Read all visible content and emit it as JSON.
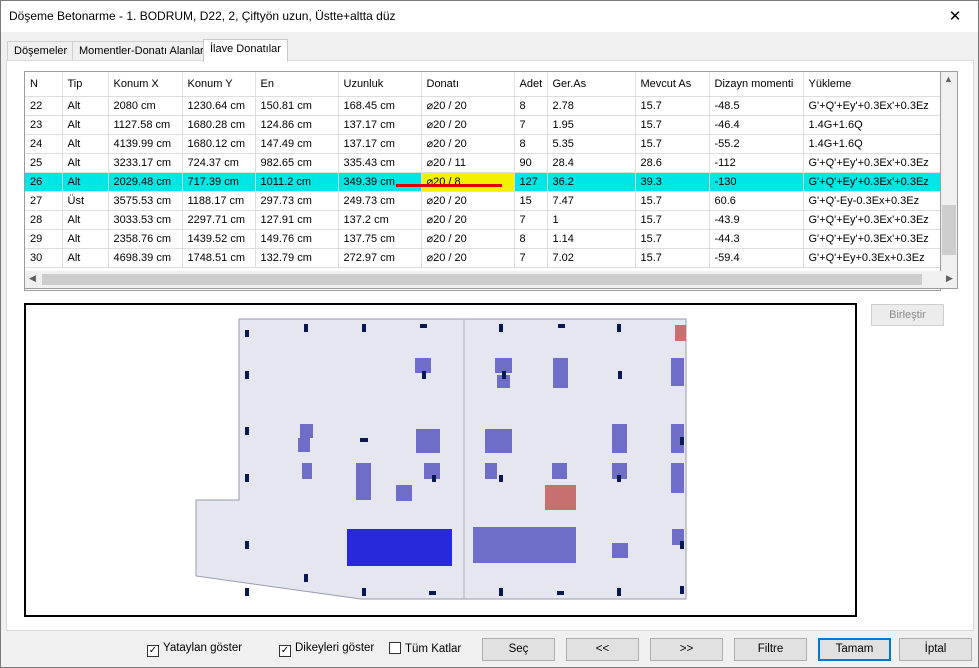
{
  "window": {
    "title": "Döşeme Betonarme - 1. BODRUM, D22, 2, Çiftyön uzun, Üstte+altta düz",
    "close": "✕"
  },
  "tabs": [
    "Döşemeler",
    "Momentler-Donatı Alanları",
    "İlave Donatılar"
  ],
  "table": {
    "columns": [
      "N",
      "Tip",
      "Konum X",
      "Konum Y",
      "En",
      "Uzunluk",
      "Donatı",
      "Adet",
      "Ger.As",
      "Mevcut As",
      "Dizayn momenti",
      "Yükleme"
    ],
    "rows": [
      [
        "22",
        "Alt",
        "2080 cm",
        "1230.64 cm",
        "150.81 cm",
        "168.45 cm",
        "⌀20 / 20",
        "8",
        "2.78",
        "15.7",
        "-48.5",
        "G'+Q'+Ey'+0.3Ex'+0.3Ez"
      ],
      [
        "23",
        "Alt",
        "1127.58 cm",
        "1680.28 cm",
        "124.86 cm",
        "137.17 cm",
        "⌀20 / 20",
        "7",
        "1.95",
        "15.7",
        "-46.4",
        "1.4G+1.6Q"
      ],
      [
        "24",
        "Alt",
        "4139.99 cm",
        "1680.12 cm",
        "147.49 cm",
        "137.17 cm",
        "⌀20 / 20",
        "8",
        "5.35",
        "15.7",
        "-55.2",
        "1.4G+1.6Q"
      ],
      [
        "25",
        "Alt",
        "3233.17 cm",
        "724.37 cm",
        "982.65 cm",
        "335.43 cm",
        "⌀20 / 11",
        "90",
        "28.4",
        "28.6",
        "-112",
        "G'+Q'+Ey'+0.3Ex'+0.3Ez"
      ],
      [
        "26",
        "Alt",
        "2029.48 cm",
        "717.39 cm",
        "1011.2 cm",
        "349.39 cm",
        "⌀20 / 8",
        "127",
        "36.2",
        "39.3",
        "-130",
        "G'+Q'+Ey'+0.3Ex'+0.3Ez"
      ],
      [
        "27",
        "Üst",
        "3575.53 cm",
        "1188.17 cm",
        "297.73 cm",
        "249.73 cm",
        "⌀20 / 20",
        "15",
        "7.47",
        "15.7",
        "60.6",
        "G'+Q'-Ey-0.3Ex+0.3Ez"
      ],
      [
        "28",
        "Alt",
        "3033.53 cm",
        "2297.71 cm",
        "127.91 cm",
        "137.2 cm",
        "⌀20 / 20",
        "7",
        "1",
        "15.7",
        "-43.9",
        "G'+Q'+Ey'+0.3Ex'+0.3Ez"
      ],
      [
        "29",
        "Alt",
        "2358.76 cm",
        "1439.52 cm",
        "149.76 cm",
        "137.75 cm",
        "⌀20 / 20",
        "8",
        "1.14",
        "15.7",
        "-44.3",
        "G'+Q'+Ey'+0.3Ex'+0.3Ez"
      ],
      [
        "30",
        "Alt",
        "4698.39 cm",
        "1748.51 cm",
        "132.79 cm",
        "272.97 cm",
        "⌀20 / 20",
        "7",
        "7.02",
        "15.7",
        "-59.4",
        "G'+Q'+Ey+0.3Ex+0.3Ez"
      ]
    ],
    "selected_row": 4
  },
  "merge_button": "Birleştir",
  "checkboxes": [
    {
      "label": "Yataylan göster",
      "checked": true
    },
    {
      "label": "Dikeyleri göster",
      "checked": true
    },
    {
      "label": "Tüm Katlar",
      "checked": false
    }
  ],
  "buttons": [
    "Seç",
    "<<",
    ">>",
    "Filtre",
    "Tamam",
    "İptal"
  ],
  "colors": {
    "selected_row": "#00e6e6",
    "highlight_cell": "#f2f200",
    "slab": "#e6e6f0",
    "rebar": "#6e6ec8",
    "rebar_selected": "#2828dc",
    "rebar_top": "#c87070"
  }
}
